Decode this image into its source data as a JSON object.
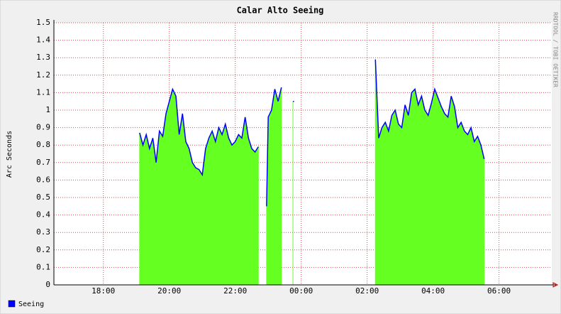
{
  "chart_data": {
    "type": "area",
    "title": "Calar Alto Seeing",
    "y_label": "Arc Seconds",
    "watermark": "RRDTOOL / TOBI OETIKER",
    "x": [
      19.1,
      19.2,
      19.3,
      19.4,
      19.5,
      19.6,
      19.7,
      19.8,
      19.9,
      20.0,
      20.1,
      20.2,
      20.3,
      20.4,
      20.5,
      20.6,
      20.7,
      20.8,
      20.9,
      21.0,
      21.1,
      21.2,
      21.3,
      21.4,
      21.5,
      21.6,
      21.7,
      21.8,
      21.9,
      22.0,
      22.1,
      22.2,
      22.3,
      22.4,
      22.5,
      22.6,
      22.7,
      22.8,
      22.95,
      23.0,
      23.1,
      23.2,
      23.3,
      23.4,
      23.5,
      23.75,
      23.8,
      26.25,
      26.35,
      26.45,
      26.55,
      26.65,
      26.75,
      26.85,
      26.95,
      27.05,
      27.15,
      27.25,
      27.35,
      27.45,
      27.55,
      27.65,
      27.75,
      27.85,
      27.95,
      28.05,
      28.15,
      28.25,
      28.35,
      28.45,
      28.55,
      28.65,
      28.75,
      28.85,
      28.95,
      29.05,
      29.15,
      29.25,
      29.35,
      29.45,
      29.55
    ],
    "series": [
      {
        "name": "Seeing",
        "color": "#0000ff",
        "fill": "#66ff22",
        "values": [
          0.87,
          0.8,
          0.86,
          0.78,
          0.84,
          0.7,
          0.88,
          0.85,
          0.98,
          1.05,
          1.12,
          1.08,
          0.86,
          0.98,
          0.82,
          0.78,
          0.7,
          0.67,
          0.66,
          0.63,
          0.78,
          0.84,
          0.88,
          0.82,
          0.9,
          0.86,
          0.92,
          0.84,
          0.8,
          0.82,
          0.86,
          0.84,
          0.96,
          0.84,
          0.78,
          0.76,
          0.79,
          null,
          0.45,
          0.96,
          1.0,
          1.12,
          1.05,
          1.13,
          null,
          1.05,
          null,
          1.29,
          0.84,
          0.9,
          0.93,
          0.88,
          0.97,
          1.0,
          0.92,
          0.9,
          1.03,
          0.97,
          1.1,
          1.12,
          1.03,
          1.08,
          1.0,
          0.97,
          1.04,
          1.12,
          1.07,
          1.02,
          0.98,
          0.96,
          1.08,
          1.02,
          0.9,
          0.93,
          0.88,
          0.86,
          0.9,
          0.82,
          0.85,
          0.8,
          0.72
        ]
      }
    ],
    "xlim": [
      16.5,
      31.6
    ],
    "xticks": [
      {
        "value": 18,
        "label": "18:00"
      },
      {
        "value": 20,
        "label": "20:00"
      },
      {
        "value": 22,
        "label": "22:00"
      },
      {
        "value": 24,
        "label": "00:00"
      },
      {
        "value": 26,
        "label": "02:00"
      },
      {
        "value": 28,
        "label": "04:00"
      },
      {
        "value": 30,
        "label": "06:00"
      }
    ],
    "ylim": [
      0,
      1.5
    ],
    "yticks": [
      0,
      0.1,
      0.2,
      0.3,
      0.4,
      0.5,
      0.6,
      0.7,
      0.8,
      0.9,
      1,
      1.1,
      1.2,
      1.3,
      1.4,
      1.5
    ],
    "grid": true
  }
}
